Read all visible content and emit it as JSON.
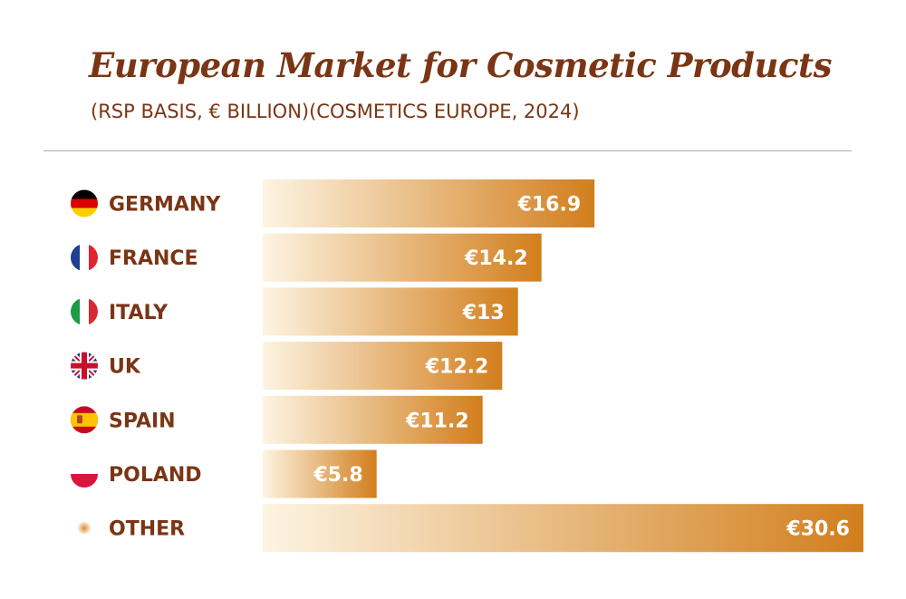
{
  "chart_data": {
    "type": "bar",
    "orientation": "horizontal",
    "title": "European Market for Cosmetic Products",
    "subtitle": "(RSP BASIS, € BILLION)(COSMETICS EUROPE, 2024)",
    "categories": [
      "GERMANY",
      "FRANCE",
      "ITALY",
      "UK",
      "SPAIN",
      "POLAND",
      "OTHER"
    ],
    "values": [
      16.9,
      14.2,
      13,
      12.2,
      11.2,
      5.8,
      30.6
    ],
    "value_labels": [
      "€16.9",
      "€14.2",
      "€13",
      "€12.2",
      "€11.2",
      "€5.8",
      "€30.6"
    ],
    "icons": [
      "germany-flag-icon",
      "france-flag-icon",
      "italy-flag-icon",
      "uk-flag-icon",
      "spain-flag-icon",
      "poland-flag-icon",
      "other-dot-icon"
    ],
    "xlim": [
      0,
      30.6
    ],
    "grid": false,
    "legend": "none",
    "colors": {
      "title": "#7a3514",
      "label": "#7a3514",
      "bar_start": "#fdf4e2",
      "bar_end": "#d27e1c",
      "value_text": "#ffffff",
      "divider": "#b8aaa0"
    }
  }
}
